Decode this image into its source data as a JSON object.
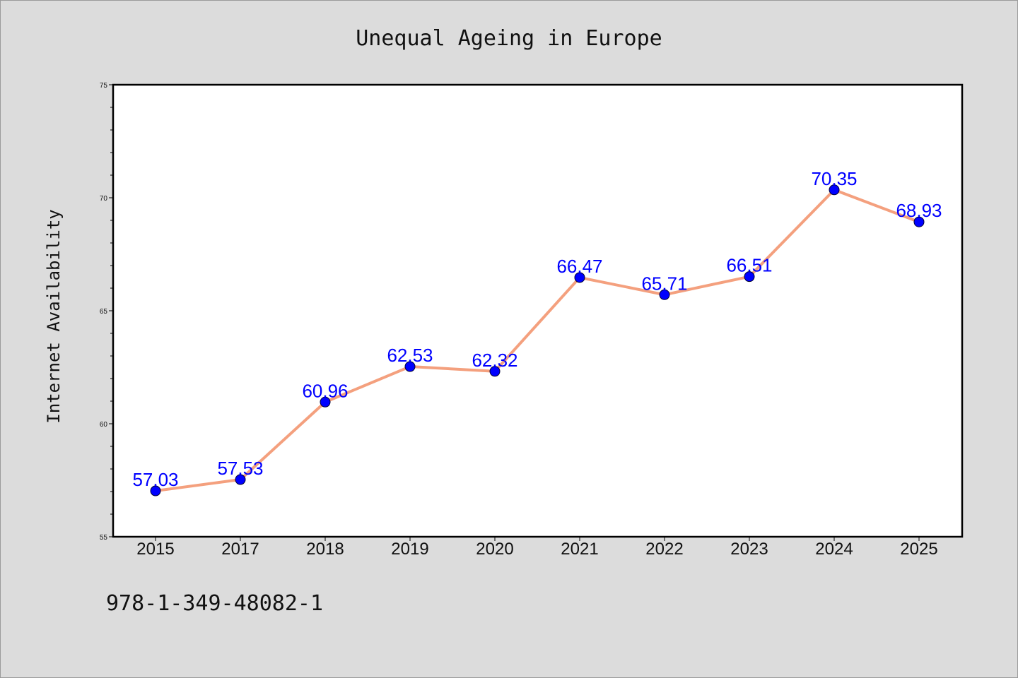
{
  "chart_data": {
    "type": "line",
    "title": "Unequal Ageing in Europe",
    "xlabel": "",
    "ylabel": "Internet Availability",
    "categories": [
      "2015",
      "2017",
      "2018",
      "2019",
      "2020",
      "2021",
      "2022",
      "2023",
      "2024",
      "2025"
    ],
    "series": [
      {
        "values": [
          57.03,
          57.53,
          60.96,
          62.53,
          62.32,
          66.47,
          65.71,
          66.51,
          70.35,
          68.93
        ],
        "data_labels": [
          "57.03",
          "57.53",
          "60.96",
          "62.53",
          "62.32",
          "66.47",
          "65.71",
          "66.51",
          "70.35",
          "68.93"
        ]
      }
    ],
    "ylim": [
      55,
      75
    ],
    "yticks": [
      "55",
      "60",
      "65",
      "70",
      "75"
    ],
    "grid": false,
    "legend": "none",
    "colors": {
      "line": "#f4a07e",
      "marker": "#0000ff",
      "data_label": "#0000ff",
      "background": "#dcdcdc",
      "plot_area": "#ffffff"
    }
  },
  "footnote": "978-1-349-48082-1"
}
